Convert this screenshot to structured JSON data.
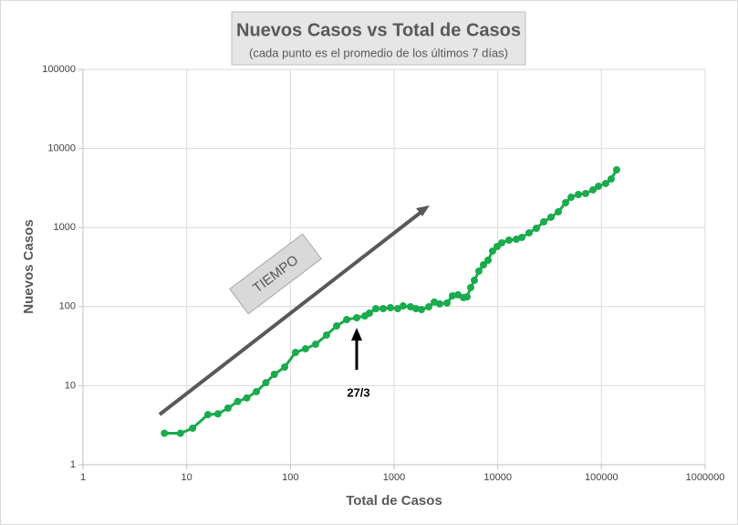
{
  "chart_data": {
    "type": "line",
    "title": "Nuevos Casos vs Total de Casos",
    "subtitle": "(cada punto es el promedio de los últimos 7 días)",
    "x_label": "Total de Casos",
    "y_label": "Nuevos Casos",
    "annotations": [
      "TIEMPO",
      "27/3"
    ],
    "x_log": true,
    "y_log": true,
    "grid": true,
    "xlim": [
      1,
      1000000
    ],
    "xticks": [
      1,
      10,
      100,
      1000,
      10000,
      100000,
      1000000
    ],
    "ylim": [
      1,
      100000
    ],
    "yticks": [
      1,
      10,
      100,
      1000,
      10000,
      100000
    ],
    "series": [
      {
        "name": "Nuevos Casos",
        "color": "#1aab4d",
        "x": [
          6.1,
          8.7,
          11.4,
          16,
          20,
          25,
          31,
          38,
          47,
          58,
          70,
          88,
          112,
          140,
          175,
          223,
          279,
          349,
          436,
          523,
          578,
          667,
          784,
          922,
          1084,
          1224,
          1439,
          1626,
          1837,
          2160,
          2440,
          2754,
          3236,
          3656,
          4130,
          4666,
          5058,
          5483,
          5943,
          6577,
          7278,
          8054,
          8913,
          9863,
          10914,
          12830,
          15100,
          17060,
          20050,
          23570,
          27730,
          32580,
          38370,
          45080,
          50930,
          59840,
          70310,
          82790,
          93530,
          109900,
          124100,
          140000
        ],
        "values": [
          2.5,
          2.5,
          2.9,
          4.3,
          4.4,
          5.2,
          6.3,
          7,
          8.4,
          10.9,
          13.9,
          17.2,
          26.3,
          29.3,
          33.4,
          43.6,
          56.9,
          68.5,
          72.3,
          76.2,
          82.6,
          94.3,
          94.3,
          96.9,
          94.3,
          102,
          99.5,
          94.3,
          91.8,
          99.5,
          114,
          108,
          111,
          137,
          141,
          130,
          133,
          174,
          215,
          281,
          338,
          386,
          504,
          575,
          640,
          693,
          711,
          750,
          857,
          979,
          1180,
          1349,
          1581,
          2061,
          2416,
          2618,
          2692,
          2992,
          3327,
          3605,
          4113,
          5370
        ]
      }
    ]
  }
}
